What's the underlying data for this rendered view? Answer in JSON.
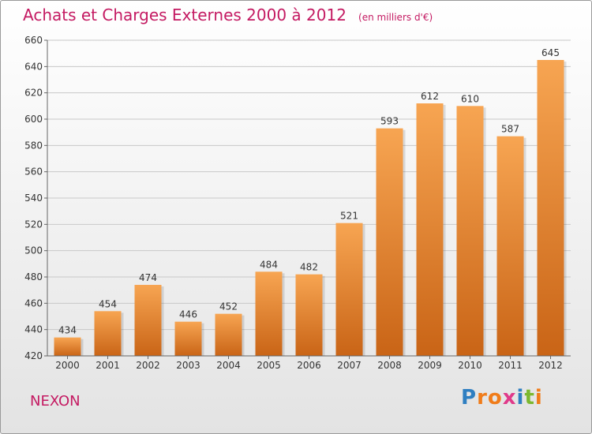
{
  "title": "Achats et Charges Externes 2000 à 2012",
  "unit": "(en milliers d'€)",
  "commune": "NEXON",
  "logo": [
    "P",
    "r",
    "o",
    "x",
    "i",
    "t",
    "i"
  ],
  "colors": {
    "accent": "#c41a62",
    "bar_top": "#f7a552",
    "bar_bottom": "#c96416",
    "logo": [
      "#2f7fc1",
      "#f07c1a",
      "#f07c1a",
      "#e03a8a",
      "#2f7fc1",
      "#7cb82f",
      "#f07c1a"
    ]
  },
  "chart_data": {
    "type": "bar",
    "categories": [
      "2000",
      "2001",
      "2002",
      "2003",
      "2004",
      "2005",
      "2006",
      "2007",
      "2008",
      "2009",
      "2010",
      "2011",
      "2012"
    ],
    "values": [
      434,
      454,
      474,
      446,
      452,
      484,
      482,
      521,
      593,
      612,
      610,
      587,
      645
    ],
    "ylim": [
      420,
      660
    ],
    "yticks": [
      420,
      440,
      460,
      480,
      500,
      520,
      540,
      560,
      580,
      600,
      620,
      640,
      660
    ],
    "grid": true,
    "data_labels": true
  }
}
